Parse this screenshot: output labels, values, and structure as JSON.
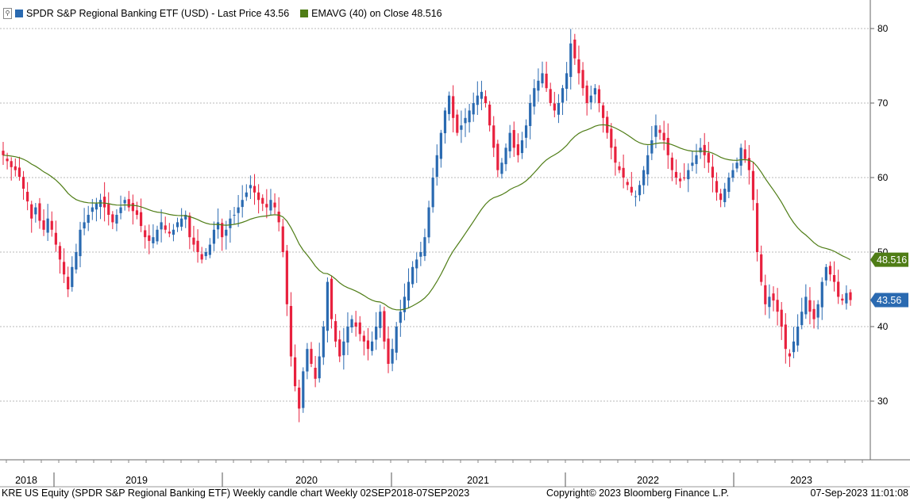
{
  "legend": {
    "series_label": "SPDR S&P Regional Banking ETF (USD) - Last Price 43.56",
    "ema_label": "EMAVG (40)  on Close 48.516",
    "series_color": "#2a6ab1",
    "ema_color": "#4f7d16"
  },
  "footer": {
    "left": "KRE US Equity (SPDR S&P Regional Banking ETF) Weekly candle chart  Weekly 02SEP2018-07SEP2023",
    "center": "Copyright© 2023 Bloomberg Finance L.P.",
    "right": "07-Sep-2023 11:01:08"
  },
  "chart_data": {
    "type": "candlestick",
    "title": "SPDR S&P Regional Banking ETF (USD)",
    "frequency": "Weekly",
    "date_range": [
      "2018-09-02",
      "2023-09-07"
    ],
    "ylim": [
      24,
      85
    ],
    "y_ticks": [
      30,
      40,
      50,
      60,
      70,
      80
    ],
    "x_labels": [
      "2018",
      "2019",
      "2020",
      "2021",
      "2022",
      "2023"
    ],
    "grid": true,
    "last_price": 43.56,
    "last_price_label": "43.56",
    "ema_value_label": "48.516",
    "up_color": "#2a6ab1",
    "down_color": "#e8213e",
    "ema_period": 40,
    "weekly_closes": [
      63.0,
      62.2,
      61.4,
      61.0,
      60.1,
      58.5,
      56.8,
      54.5,
      56.0,
      54.2,
      53.0,
      54.5,
      53.0,
      51.0,
      49.0,
      47.0,
      45.0,
      48.0,
      50.0,
      53.0,
      54.0,
      55.0,
      56.0,
      56.5,
      57.0,
      56.0,
      55.0,
      54.0,
      55.0,
      56.0,
      57.0,
      56.0,
      55.5,
      55.0,
      53.5,
      52.0,
      51.5,
      52.0,
      53.0,
      54.0,
      53.0,
      52.5,
      53.0,
      54.0,
      54.5,
      55.0,
      52.0,
      51.0,
      50.0,
      49.0,
      50.0,
      51.0,
      53.0,
      54.0,
      52.0,
      53.0,
      54.5,
      55.0,
      56.0,
      57.0,
      58.0,
      59.0,
      58.0,
      57.0,
      56.5,
      56.0,
      57.0,
      56.0,
      54.0,
      50.0,
      43.0,
      36.0,
      32.0,
      29.0,
      34.0,
      37.0,
      35.0,
      33.0,
      36.0,
      40.0,
      46.0,
      41.0,
      38.0,
      36.0,
      38.0,
      40.0,
      41.0,
      40.0,
      39.0,
      38.0,
      37.0,
      38.0,
      40.0,
      42.0,
      38.0,
      35.0,
      37.0,
      40.0,
      42.0,
      44.0,
      46.0,
      48.0,
      49.0,
      50.0,
      52.0,
      56.0,
      60.0,
      63.0,
      66.0,
      69.0,
      71.0,
      68.0,
      66.0,
      67.0,
      68.0,
      69.0,
      70.0,
      71.0,
      71.5,
      70.0,
      67.0,
      64.0,
      61.0,
      62.0,
      64.0,
      66.0,
      64.0,
      63.0,
      65.0,
      67.0,
      70.0,
      72.0,
      73.0,
      74.0,
      72.0,
      70.0,
      69.0,
      70.0,
      72.0,
      74.0,
      78.0,
      76.0,
      74.0,
      72.0,
      70.0,
      71.0,
      72.0,
      70.0,
      68.0,
      66.0,
      64.0,
      62.0,
      61.0,
      60.0,
      59.0,
      58.0,
      57.5,
      59.0,
      61.0,
      63.0,
      65.0,
      67.0,
      66.0,
      65.0,
      63.0,
      61.0,
      60.0,
      59.5,
      60.0,
      61.0,
      62.0,
      63.0,
      64.0,
      63.0,
      62.0,
      60.0,
      58.0,
      57.0,
      58.5,
      60.0,
      61.0,
      62.0,
      64.0,
      62.5,
      61.0,
      57.0,
      50.0,
      46.0,
      43.0,
      44.0,
      43.5,
      42.0,
      40.0,
      37.0,
      36.0,
      38.0,
      40.0,
      42.0,
      44.0,
      42.0,
      41.0,
      43.0,
      46.0,
      48.0,
      47.0,
      46.0,
      44.0,
      43.5,
      44.5,
      43.56
    ]
  }
}
